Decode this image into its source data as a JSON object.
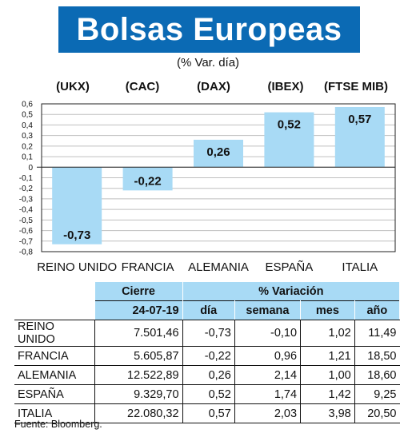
{
  "title": "Bolsas Europeas",
  "subtitle": "(% Var. día)",
  "colors": {
    "title_bg": "#0b6ab4",
    "bar": "#a8daf5",
    "grid": "#bfbfbf"
  },
  "chart_data": {
    "type": "bar",
    "categories": [
      "REINO UNIDO",
      "FRANCIA",
      "ALEMANIA",
      "ESPAÑA",
      "ITALIA"
    ],
    "index_labels": [
      "(UKX)",
      "(CAC)",
      "(DAX)",
      "(IBEX)",
      "(FTSE MIB)"
    ],
    "values": [
      -0.73,
      -0.22,
      0.26,
      0.52,
      0.57
    ],
    "value_labels": [
      "-0,73",
      "-0,22",
      "0,26",
      "0,52",
      "0,57"
    ],
    "ylim": [
      -0.8,
      0.6
    ],
    "yticks": [
      "0,6",
      "0,5",
      "0,4",
      "0,3",
      "0,2",
      "0,1",
      "0",
      "-0,1",
      "-0,2",
      "-0,3",
      "-0,4",
      "-0,5",
      "-0,6",
      "-0,7",
      "-0,8"
    ],
    "grid": true
  },
  "table": {
    "header_cierre": "Cierre",
    "header_variacion": "% Variación",
    "date": "24-07-19",
    "columns": [
      "día",
      "semana",
      "mes",
      "año"
    ],
    "rows": [
      {
        "country": "REINO UNIDO",
        "cierre": "7.501,46",
        "dia": "-0,73",
        "semana": "-0,10",
        "mes": "1,02",
        "ano": "11,49"
      },
      {
        "country": "FRANCIA",
        "cierre": "5.605,87",
        "dia": "-0,22",
        "semana": "0,96",
        "mes": "1,21",
        "ano": "18,50"
      },
      {
        "country": "ALEMANIA",
        "cierre": "12.522,89",
        "dia": "0,26",
        "semana": "2,14",
        "mes": "1,00",
        "ano": "18,60"
      },
      {
        "country": "ESPAÑA",
        "cierre": "9.329,70",
        "dia": "0,52",
        "semana": "1,74",
        "mes": "1,42",
        "ano": "9,25"
      },
      {
        "country": "ITALIA",
        "cierre": "22.080,32",
        "dia": "0,57",
        "semana": "2,03",
        "mes": "3,98",
        "ano": "20,50"
      }
    ]
  },
  "source": "Fuente: Bloomberg."
}
